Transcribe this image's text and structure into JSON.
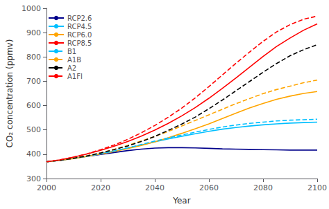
{
  "chart_data": {
    "type": "line",
    "xlabel": "Year",
    "ylabel": "CO₂ concentration (ppmv)",
    "xlim": [
      2000,
      2100
    ],
    "ylim": [
      300,
      1000
    ],
    "xticks": [
      2000,
      2020,
      2040,
      2060,
      2080,
      2100
    ],
    "yticks": [
      300,
      400,
      500,
      600,
      700,
      800,
      900,
      1000
    ],
    "grid": false,
    "legend": "upper left",
    "x": [
      2000,
      2005,
      2010,
      2015,
      2020,
      2025,
      2030,
      2035,
      2040,
      2045,
      2050,
      2055,
      2060,
      2065,
      2070,
      2075,
      2080,
      2085,
      2090,
      2095,
      2100
    ],
    "series": [
      {
        "name": "RCP2.6",
        "color": "#00008B",
        "line_style": "solid",
        "values": [
          369,
          375,
          383,
          391,
          399,
          407,
          415,
          421,
          425,
          427,
          427,
          426,
          424,
          422,
          421,
          420,
          419,
          418,
          417,
          417,
          417
        ]
      },
      {
        "name": "RCP4.5",
        "color": "#00BFFF",
        "line_style": "solid",
        "values": [
          369,
          375,
          383,
          392,
          402,
          413,
          425,
          438,
          451,
          463,
          474,
          484,
          494,
          503,
          510,
          516,
          521,
          525,
          528,
          530,
          532
        ]
      },
      {
        "name": "RCP6.0",
        "color": "#FFA500",
        "line_style": "solid",
        "values": [
          369,
          375,
          382,
          391,
          401,
          411,
          423,
          436,
          451,
          468,
          486,
          505,
          525,
          547,
          569,
          590,
          609,
          626,
          639,
          650,
          658
        ]
      },
      {
        "name": "RCP8.5",
        "color": "#FF0000",
        "line_style": "solid",
        "values": [
          369,
          377,
          388,
          401,
          416,
          433,
          452,
          474,
          499,
          527,
          558,
          592,
          630,
          671,
          714,
          758,
          802,
          843,
          878,
          910,
          936
        ]
      },
      {
        "name": "B1",
        "color": "#00BFFF",
        "line_style": "dashed",
        "values": [
          369,
          375,
          383,
          392,
          402,
          413,
          426,
          440,
          454,
          467,
          479,
          491,
          502,
          512,
          520,
          527,
          532,
          537,
          540,
          542,
          544
        ]
      },
      {
        "name": "A1B",
        "color": "#FFA500",
        "line_style": "dashed",
        "values": [
          369,
          375,
          383,
          394,
          406,
          420,
          436,
          454,
          473,
          494,
          516,
          539,
          562,
          585,
          608,
          629,
          649,
          666,
          680,
          694,
          705
        ]
      },
      {
        "name": "A2",
        "color": "#000000",
        "line_style": "dashed",
        "values": [
          369,
          375,
          383,
          393,
          405,
          419,
          434,
          452,
          473,
          498,
          524,
          553,
          587,
          623,
          661,
          699,
          737,
          773,
          805,
          830,
          850
        ]
      },
      {
        "name": "A1FI",
        "color": "#FF0000",
        "line_style": "dashed",
        "values": [
          369,
          377,
          388,
          402,
          419,
          438,
          461,
          488,
          518,
          552,
          590,
          632,
          678,
          726,
          774,
          820,
          864,
          903,
          933,
          955,
          968
        ]
      }
    ]
  }
}
